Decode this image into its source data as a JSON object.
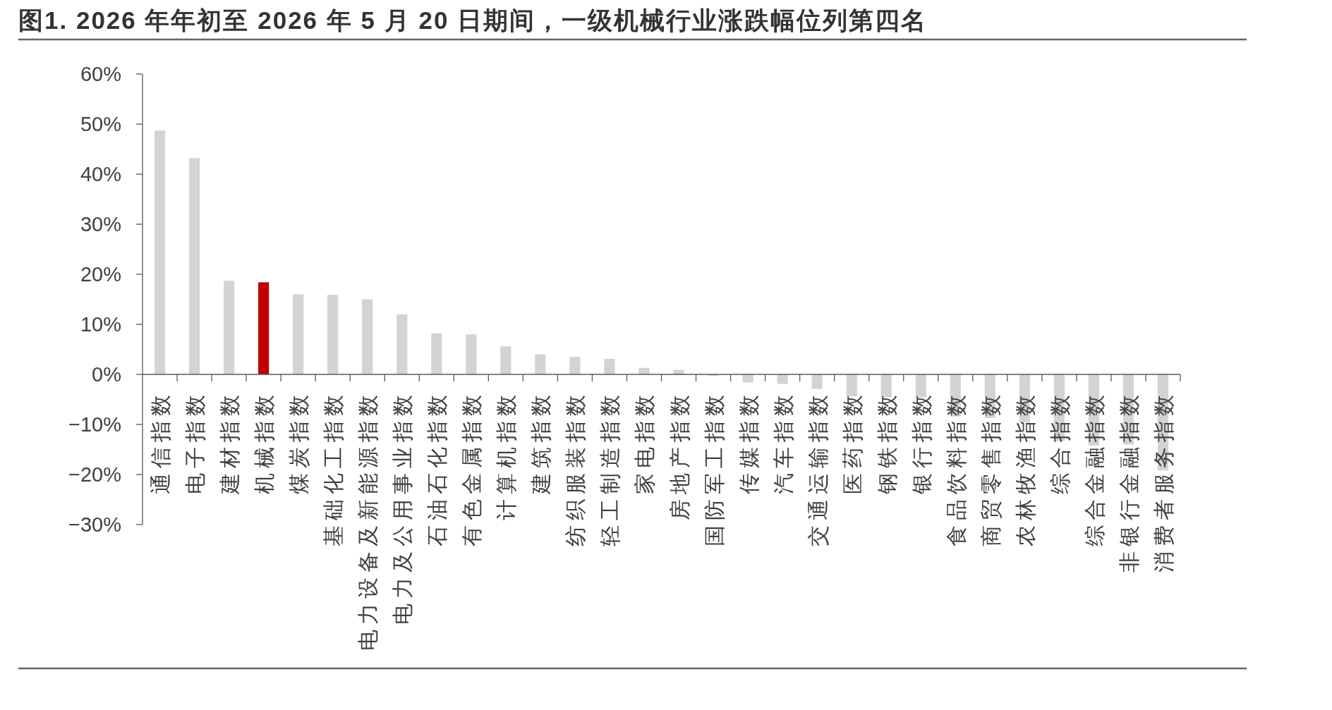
{
  "chart_data": {
    "type": "bar",
    "title": "图1. 2026 年年初至 2026 年 5 月 20 日期间，一级机械行业涨跌幅位列第四名",
    "categories": [
      "通信指数",
      "电子指数",
      "建材指数",
      "机械指数",
      "煤炭指数",
      "基础化工指数",
      "电力设备及新能源指数",
      "电力及公用事业指数",
      "石油石化指数",
      "有色金属指数",
      "计算机指数",
      "建筑指数",
      "纺织服装指数",
      "轻工制造指数",
      "家电指数",
      "房地产指数",
      "国防军工指数",
      "传媒指数",
      "汽车指数",
      "交通运输指数",
      "医药指数",
      "钢铁指数",
      "银行指数",
      "食品饮料指数",
      "商贸零售指数",
      "农林牧渔指数",
      "综合指数",
      "综合金融指数",
      "非银行金融指数",
      "消费者服务指数"
    ],
    "values": [
      48.7,
      43.2,
      18.7,
      18.4,
      16.0,
      15.9,
      15.0,
      12.0,
      8.2,
      8.0,
      5.6,
      4.0,
      3.5,
      3.1,
      1.3,
      0.9,
      -0.3,
      -1.6,
      -1.9,
      -2.9,
      -4.4,
      -4.6,
      -4.6,
      -8.4,
      -8.7,
      -9.6,
      -13.3,
      -14.2,
      -14.0,
      -19.2
    ],
    "colors": [
      "#d3d3d3",
      "#d3d3d3",
      "#d3d3d3",
      "#c00000",
      "#d3d3d3",
      "#d3d3d3",
      "#d3d3d3",
      "#d3d3d3",
      "#d3d3d3",
      "#d3d3d3",
      "#d3d3d3",
      "#d3d3d3",
      "#d3d3d3",
      "#d3d3d3",
      "#d3d3d3",
      "#d3d3d3",
      "#d3d3d3",
      "#d3d3d3",
      "#d3d3d3",
      "#d3d3d3",
      "#d3d3d3",
      "#d3d3d3",
      "#d3d3d3",
      "#d3d3d3",
      "#d3d3d3",
      "#d3d3d3",
      "#d3d3d3",
      "#d3d3d3",
      "#d3d3d3",
      "#d3d3d3"
    ],
    "ylim": [
      -30,
      60
    ],
    "yticks": [
      {
        "value": -30,
        "label": "−30%"
      },
      {
        "value": -20,
        "label": "−20%"
      },
      {
        "value": -10,
        "label": "−10%"
      },
      {
        "value": 0,
        "label": "0%"
      },
      {
        "value": 10,
        "label": "10%"
      },
      {
        "value": 20,
        "label": "20%"
      },
      {
        "value": 30,
        "label": "30%"
      },
      {
        "value": 40,
        "label": "40%"
      },
      {
        "value": 50,
        "label": "50%"
      },
      {
        "value": 60,
        "label": "60%"
      }
    ]
  }
}
